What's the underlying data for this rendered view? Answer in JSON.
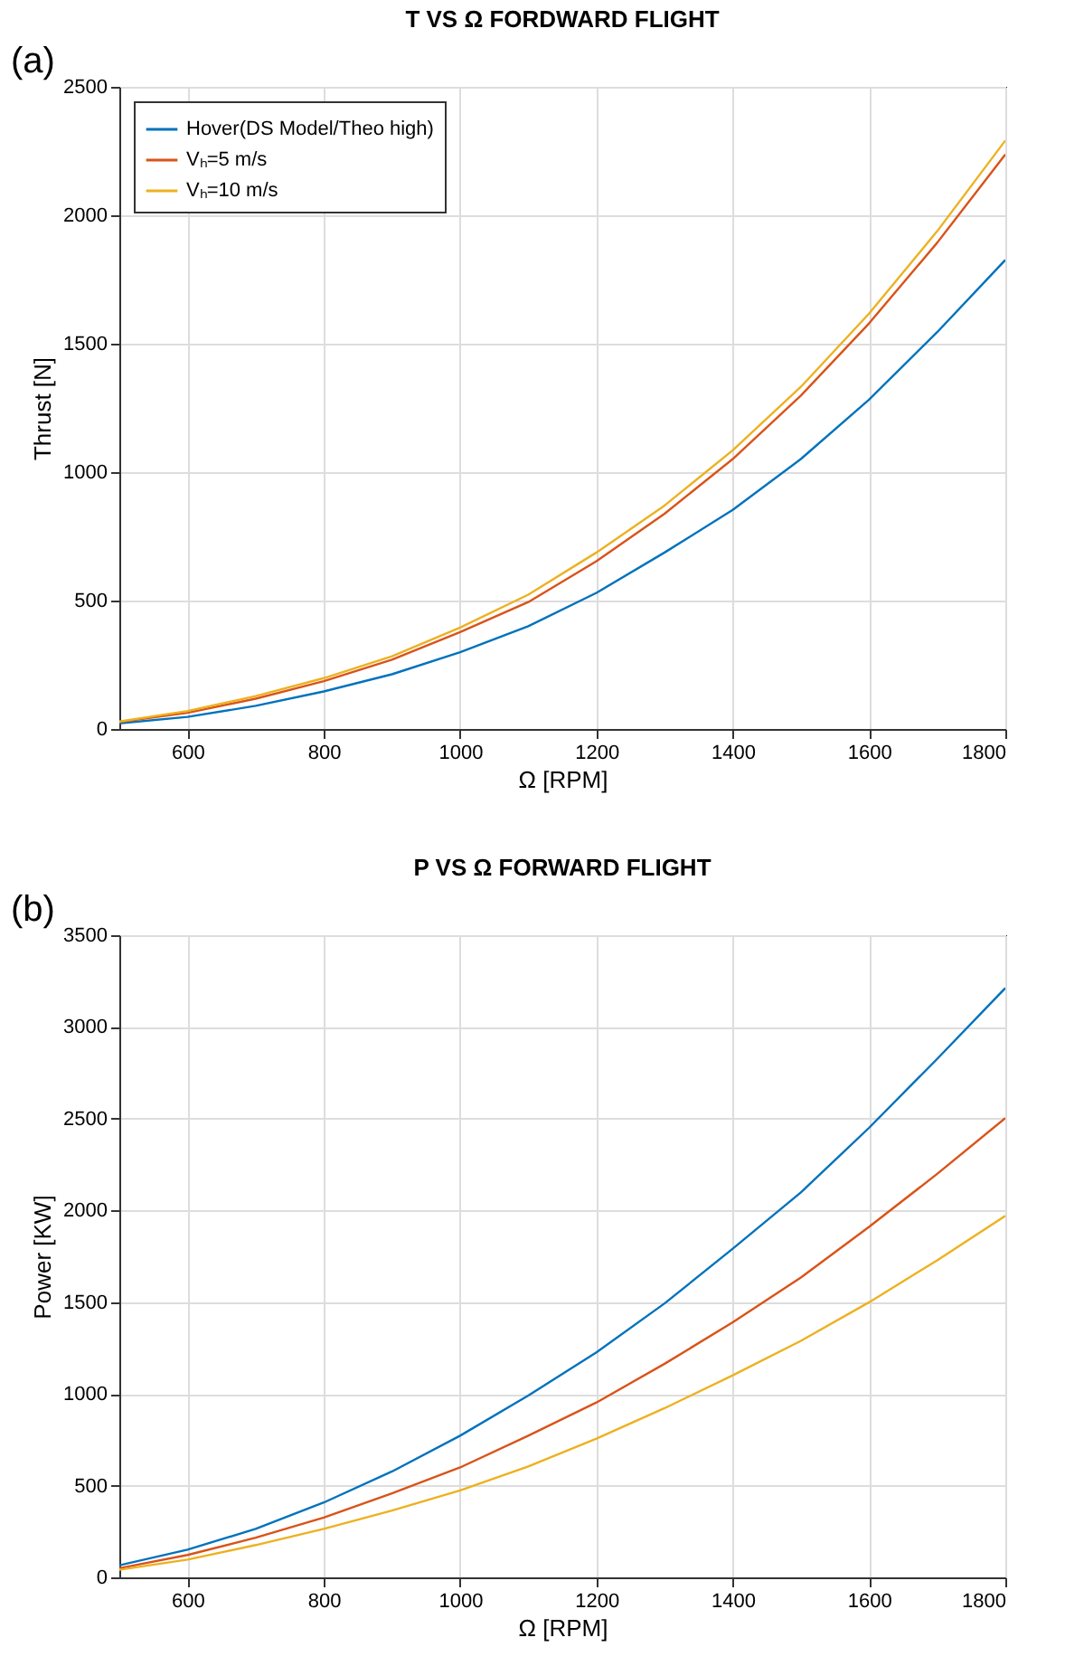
{
  "chart_data": [
    {
      "type": "line",
      "title": "T VS Ω FORDWARD FLIGHT",
      "xlabel": "Ω [RPM]",
      "ylabel": "Thrust [N]",
      "annotations": [
        "(a)"
      ],
      "x": [
        500,
        600,
        700,
        800,
        900,
        1000,
        1100,
        1200,
        1300,
        1400,
        1500,
        1600,
        1700,
        1800
      ],
      "series": [
        {
          "name": "Hover(DS Model/Theo high)",
          "color": "#0072bd",
          "values": [
            22,
            47,
            90,
            146,
            213,
            299,
            400,
            530,
            687,
            853,
            1051,
            1282,
            1545,
            1826
          ]
        },
        {
          "name": "Vₕ=5 m/s",
          "color": "#d95319",
          "values": [
            27,
            63,
            118,
            186,
            270,
            377,
            494,
            653,
            838,
            1051,
            1298,
            1579,
            1893,
            2237
          ]
        },
        {
          "name": "Vₕ=10 m/s",
          "color": "#edb120",
          "values": [
            29,
            70,
            128,
            198,
            283,
            395,
            523,
            687,
            870,
            1085,
            1332,
            1617,
            1938,
            2291
          ]
        }
      ],
      "xlim": [
        500,
        1800
      ],
      "xticks": [
        600,
        800,
        1000,
        1200,
        1400,
        1600,
        1800
      ],
      "ylim": [
        0,
        2500
      ],
      "yticks": [
        0,
        500,
        1000,
        1500,
        2000,
        2500
      ],
      "grid": true,
      "legend": "top left",
      "marker": "none",
      "line_style": "solid"
    },
    {
      "type": "line",
      "title": "P VS Ω FORWARD FLIGHT",
      "xlabel": "Ω [RPM]",
      "ylabel": "Power [KW]",
      "annotations": [
        "(b)"
      ],
      "x": [
        500,
        600,
        700,
        800,
        900,
        1000,
        1100,
        1200,
        1300,
        1400,
        1500,
        1600,
        1700,
        1800
      ],
      "series": [
        {
          "name": "Hover(DS Model/Theo high)",
          "color": "#0072bd",
          "values": [
            66,
            151,
            264,
            408,
            577,
            772,
            991,
            1226,
            1493,
            1791,
            2098,
            2450,
            2826,
            3212
          ]
        },
        {
          "name": "Vₕ=5 m/s",
          "color": "#d95319",
          "values": [
            50,
            122,
            216,
            326,
            458,
            599,
            772,
            953,
            1164,
            1390,
            1634,
            1910,
            2199,
            2503
          ]
        },
        {
          "name": "Vₕ=10 m/s",
          "color": "#edb120",
          "values": [
            41,
            97,
            176,
            264,
            364,
            474,
            605,
            756,
            922,
            1101,
            1289,
            1499,
            1728,
            1970
          ]
        }
      ],
      "xlim": [
        500,
        1800
      ],
      "xticks": [
        600,
        800,
        1000,
        1200,
        1400,
        1600,
        1800
      ],
      "ylim": [
        0,
        3500
      ],
      "yticks": [
        0,
        500,
        1000,
        1500,
        2000,
        2500,
        3000,
        3500
      ],
      "grid": true,
      "legend": "top left",
      "marker": "none",
      "line_style": "solid"
    }
  ]
}
